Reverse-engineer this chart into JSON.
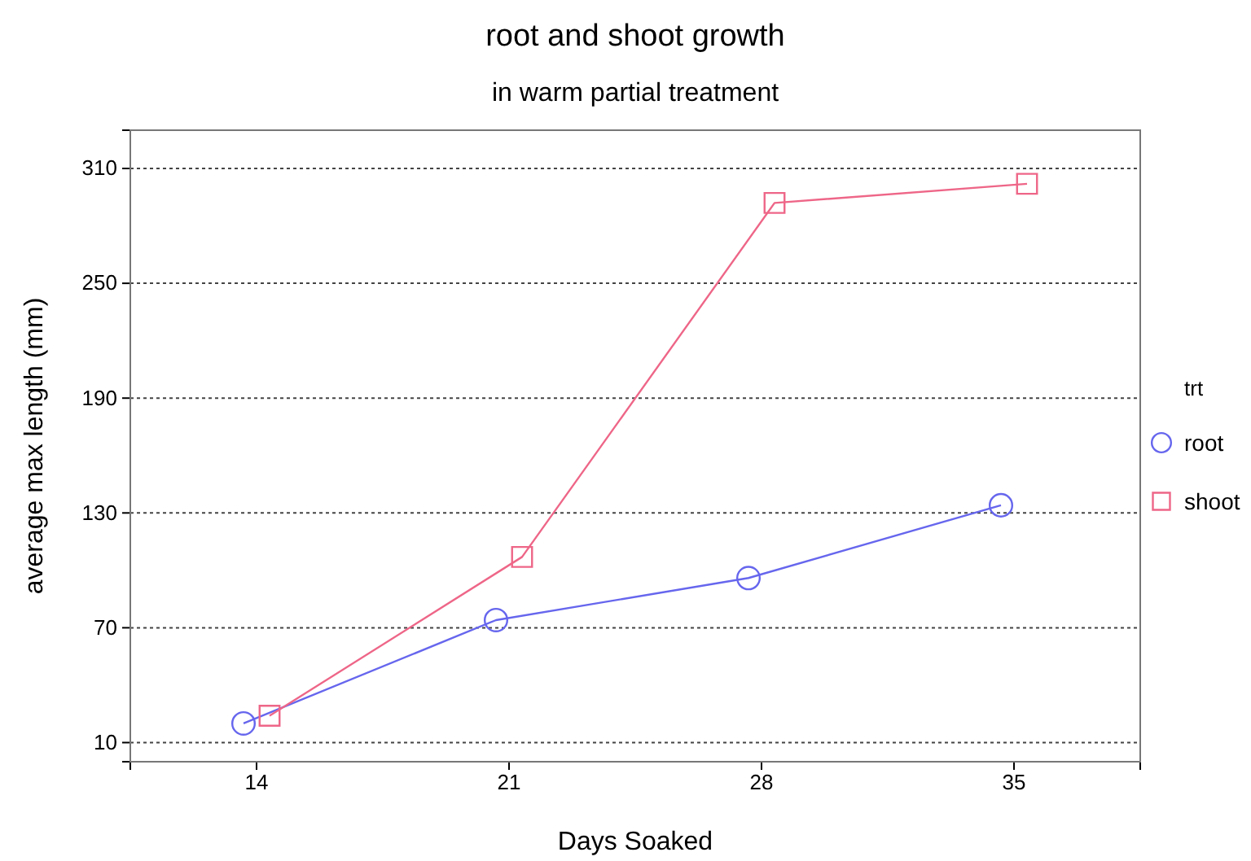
{
  "chart_data": {
    "type": "line",
    "title": "root and shoot growth",
    "subtitle": "in warm partial treatment",
    "xlabel": "Days Soaked",
    "ylabel": "average max length (mm)",
    "legend_title": "trt",
    "categories": [
      "14",
      "21",
      "28",
      "35"
    ],
    "series": [
      {
        "name": "root",
        "color": "#6666ee",
        "marker": "circle",
        "values": [
          20,
          74,
          96,
          134
        ]
      },
      {
        "name": "shoot",
        "color": "#ee6688",
        "marker": "square",
        "values": [
          24,
          107,
          292,
          302
        ]
      }
    ],
    "ylim": [
      0,
      330
    ],
    "yticks": [
      10,
      70,
      130,
      190,
      250,
      310
    ],
    "grid": "y",
    "legend": "right"
  }
}
